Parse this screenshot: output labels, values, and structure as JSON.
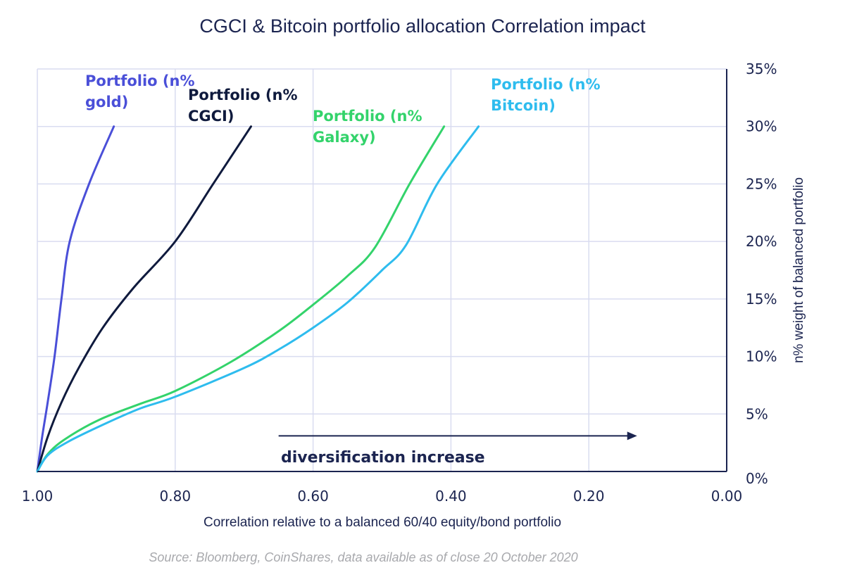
{
  "chart_data": {
    "type": "line",
    "title": "CGCI & Bitcoin portfolio allocation Correlation impact",
    "xlabel": "Correlation relative to a balanced 60/40 equity/bond portfolio",
    "ylabel": "n% weight of balanced portfolio",
    "xlim": [
      1.0,
      0.0
    ],
    "ylim": [
      0,
      35
    ],
    "x_reversed": true,
    "y_axis_side": "right",
    "grid": true,
    "x_ticks": [
      1.0,
      0.8,
      0.6,
      0.4,
      0.2,
      0.0
    ],
    "x_tick_labels": [
      "1.00",
      "0.80",
      "0.60",
      "0.40",
      "0.20",
      "0.00"
    ],
    "y_ticks": [
      0,
      5,
      10,
      15,
      20,
      25,
      30,
      35
    ],
    "y_tick_labels": [
      "0%",
      "5%",
      "10%",
      "15%",
      "20%",
      "25%",
      "30%",
      "35%"
    ],
    "series": [
      {
        "name": "Portfolio (n% gold)",
        "label_lines": [
          "Portfolio (n%",
          "gold)"
        ],
        "color": "#4a4fd8",
        "x": [
          1.0,
          0.993,
          0.985,
          0.975,
          0.965,
          0.953,
          0.925,
          0.889
        ],
        "y": [
          0,
          3,
          6,
          10,
          15,
          20,
          25,
          30
        ]
      },
      {
        "name": "Portfolio (n% CGCI)",
        "label_lines": [
          "Portfolio (n%",
          "CGCI)"
        ],
        "color": "#0f1a3d",
        "x": [
          1.0,
          0.985,
          0.965,
          0.94,
          0.905,
          0.86,
          0.8,
          0.745,
          0.69
        ],
        "y": [
          0,
          3,
          6,
          9,
          12.5,
          16,
          20,
          25,
          30
        ]
      },
      {
        "name": "Portfolio (n% Galaxy)",
        "label_lines": [
          "Portfolio (n%",
          "Galaxy)"
        ],
        "color": "#33d36b",
        "x": [
          1.0,
          0.985,
          0.96,
          0.91,
          0.85,
          0.8,
          0.72,
          0.65,
          0.6,
          0.55,
          0.51,
          0.46,
          0.41
        ],
        "y": [
          0,
          1.5,
          2.8,
          4.5,
          5.9,
          7,
          9.5,
          12.2,
          14.5,
          17,
          19.5,
          25,
          30
        ]
      },
      {
        "name": "Portfolio (n% Bitcoin)",
        "label_lines": [
          "Portfolio (n%",
          "Bitcoin)"
        ],
        "color": "#2ebcee",
        "x": [
          1.0,
          0.985,
          0.955,
          0.9,
          0.85,
          0.8,
          0.7,
          0.65,
          0.6,
          0.55,
          0.5,
          0.465,
          0.42,
          0.36
        ],
        "y": [
          0,
          1.4,
          2.6,
          4.2,
          5.5,
          6.5,
          9,
          10.6,
          12.5,
          14.7,
          17.5,
          19.7,
          25,
          30
        ]
      }
    ],
    "annotations": [
      {
        "text": "diversification increase",
        "arrow_from": 0.65,
        "arrow_to": 0.13,
        "at_y": 3.1
      }
    ],
    "source": "Source: Bloomberg, CoinShares, data available as of close 20 October 2020"
  }
}
